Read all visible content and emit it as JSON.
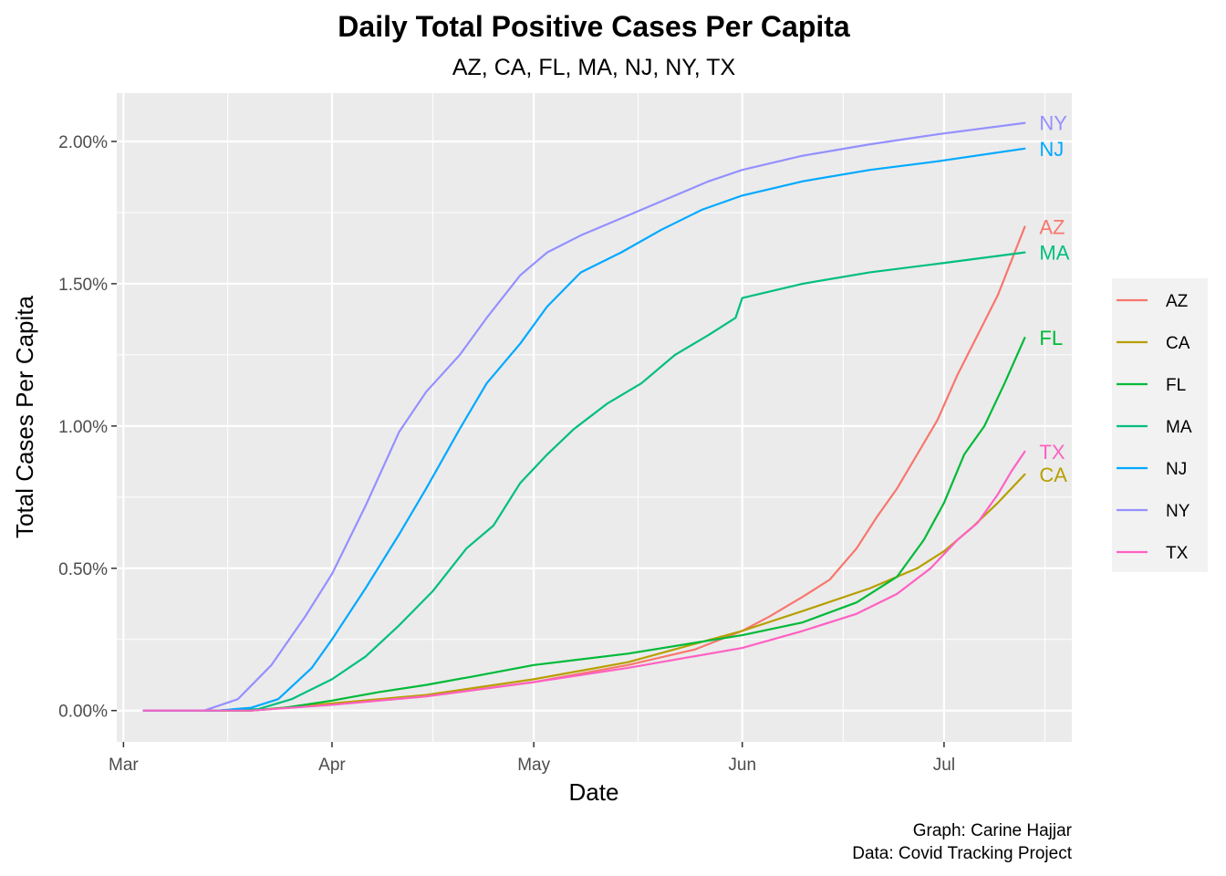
{
  "chart_data": {
    "type": "line",
    "title": "Daily Total Positive Cases Per Capita",
    "subtitle": "AZ, CA, FL, MA, NJ, NY, TX",
    "xlabel": "Date",
    "ylabel": "Total Cases Per Capita",
    "xlim": [
      "2020-02-29",
      "2020-07-20"
    ],
    "ylim": [
      -0.0011,
      0.0217
    ],
    "y_ticks": [
      0,
      0.005,
      0.01,
      0.015,
      0.02
    ],
    "y_tick_labels": [
      "0.00%",
      "0.50%",
      "1.00%",
      "1.50%",
      "2.00%"
    ],
    "x_ticks": [
      "2020-03-01",
      "2020-04-01",
      "2020-05-01",
      "2020-06-01",
      "2020-07-01"
    ],
    "x_tick_labels": [
      "Mar",
      "Apr",
      "May",
      "Jun",
      "Jul"
    ],
    "grid": true,
    "legend": "right",
    "end_labels": true,
    "series": [
      {
        "name": "AZ",
        "color": "#F8766D",
        "points": [
          [
            "2020-03-04",
            0
          ],
          [
            "2020-03-20",
            0
          ],
          [
            "2020-04-01",
            0.00021
          ],
          [
            "2020-04-15",
            0.0005
          ],
          [
            "2020-05-01",
            0.001
          ],
          [
            "2020-05-15",
            0.0016
          ],
          [
            "2020-05-25",
            0.00215
          ],
          [
            "2020-06-01",
            0.0028
          ],
          [
            "2020-06-05",
            0.0033
          ],
          [
            "2020-06-10",
            0.004
          ],
          [
            "2020-06-14",
            0.0046
          ],
          [
            "2020-06-18",
            0.0057
          ],
          [
            "2020-06-21",
            0.0068
          ],
          [
            "2020-06-24",
            0.0078
          ],
          [
            "2020-06-27",
            0.009
          ],
          [
            "2020-06-30",
            0.0102
          ],
          [
            "2020-07-03",
            0.0118
          ],
          [
            "2020-07-06",
            0.0132
          ],
          [
            "2020-07-09",
            0.0146
          ],
          [
            "2020-07-11",
            0.0158
          ],
          [
            "2020-07-13",
            0.017
          ]
        ]
      },
      {
        "name": "CA",
        "color": "#B79F00",
        "points": [
          [
            "2020-03-04",
            0
          ],
          [
            "2020-03-20",
            0
          ],
          [
            "2020-04-01",
            0.00025
          ],
          [
            "2020-04-15",
            0.00055
          ],
          [
            "2020-05-01",
            0.0011
          ],
          [
            "2020-05-15",
            0.0017
          ],
          [
            "2020-06-01",
            0.0028
          ],
          [
            "2020-06-10",
            0.0035
          ],
          [
            "2020-06-20",
            0.0043
          ],
          [
            "2020-06-27",
            0.005
          ],
          [
            "2020-07-01",
            0.0056
          ],
          [
            "2020-07-05",
            0.0064
          ],
          [
            "2020-07-09",
            0.0073
          ],
          [
            "2020-07-13",
            0.0083
          ]
        ]
      },
      {
        "name": "FL",
        "color": "#00BA38",
        "points": [
          [
            "2020-03-04",
            0
          ],
          [
            "2020-03-20",
            0
          ],
          [
            "2020-03-25",
            0.0001
          ],
          [
            "2020-04-01",
            0.00035
          ],
          [
            "2020-04-08",
            0.00065
          ],
          [
            "2020-04-15",
            0.0009
          ],
          [
            "2020-04-22",
            0.0012
          ],
          [
            "2020-05-01",
            0.0016
          ],
          [
            "2020-05-15",
            0.002
          ],
          [
            "2020-06-01",
            0.00265
          ],
          [
            "2020-06-10",
            0.0031
          ],
          [
            "2020-06-18",
            0.0038
          ],
          [
            "2020-06-24",
            0.0047
          ],
          [
            "2020-06-28",
            0.006
          ],
          [
            "2020-07-01",
            0.0073
          ],
          [
            "2020-07-04",
            0.009
          ],
          [
            "2020-07-07",
            0.01
          ],
          [
            "2020-07-10",
            0.0115
          ],
          [
            "2020-07-13",
            0.0131
          ]
        ]
      },
      {
        "name": "MA",
        "color": "#00BF7D",
        "points": [
          [
            "2020-03-04",
            0
          ],
          [
            "2020-03-15",
            0
          ],
          [
            "2020-03-21",
            5e-05
          ],
          [
            "2020-03-26",
            0.0004
          ],
          [
            "2020-04-01",
            0.0011
          ],
          [
            "2020-04-06",
            0.0019
          ],
          [
            "2020-04-11",
            0.003
          ],
          [
            "2020-04-16",
            0.0042
          ],
          [
            "2020-04-21",
            0.0057
          ],
          [
            "2020-04-25",
            0.0065
          ],
          [
            "2020-04-29",
            0.008
          ],
          [
            "2020-05-03",
            0.009
          ],
          [
            "2020-05-07",
            0.0099
          ],
          [
            "2020-05-12",
            0.0108
          ],
          [
            "2020-05-17",
            0.0115
          ],
          [
            "2020-05-22",
            0.0125
          ],
          [
            "2020-05-27",
            0.0132
          ],
          [
            "2020-05-31",
            0.0138
          ],
          [
            "2020-06-01",
            0.0145
          ],
          [
            "2020-06-10",
            0.015
          ],
          [
            "2020-06-20",
            0.0154
          ],
          [
            "2020-06-30",
            0.0157
          ],
          [
            "2020-07-13",
            0.0161
          ]
        ]
      },
      {
        "name": "NJ",
        "color": "#00A9FF",
        "points": [
          [
            "2020-03-04",
            0
          ],
          [
            "2020-03-15",
            0
          ],
          [
            "2020-03-20",
            0.0001
          ],
          [
            "2020-03-24",
            0.0004
          ],
          [
            "2020-03-29",
            0.0015
          ],
          [
            "2020-04-01",
            0.0025
          ],
          [
            "2020-04-06",
            0.0043
          ],
          [
            "2020-04-11",
            0.0062
          ],
          [
            "2020-04-15",
            0.0078
          ],
          [
            "2020-04-20",
            0.0099
          ],
          [
            "2020-04-24",
            0.0115
          ],
          [
            "2020-04-29",
            0.0129
          ],
          [
            "2020-05-03",
            0.0142
          ],
          [
            "2020-05-08",
            0.0154
          ],
          [
            "2020-05-14",
            0.0161
          ],
          [
            "2020-05-20",
            0.0169
          ],
          [
            "2020-05-26",
            0.0176
          ],
          [
            "2020-06-01",
            0.0181
          ],
          [
            "2020-06-10",
            0.0186
          ],
          [
            "2020-06-20",
            0.019
          ],
          [
            "2020-06-30",
            0.0193
          ],
          [
            "2020-07-13",
            0.01975
          ]
        ]
      },
      {
        "name": "NY",
        "color": "#9590FF",
        "points": [
          [
            "2020-03-04",
            0
          ],
          [
            "2020-03-13",
            0
          ],
          [
            "2020-03-18",
            0.0004
          ],
          [
            "2020-03-23",
            0.0016
          ],
          [
            "2020-03-28",
            0.0033
          ],
          [
            "2020-04-01",
            0.0048
          ],
          [
            "2020-04-06",
            0.0072
          ],
          [
            "2020-04-11",
            0.0098
          ],
          [
            "2020-04-15",
            0.0112
          ],
          [
            "2020-04-20",
            0.0125
          ],
          [
            "2020-04-24",
            0.0138
          ],
          [
            "2020-04-29",
            0.0153
          ],
          [
            "2020-05-03",
            0.0161
          ],
          [
            "2020-05-08",
            0.0167
          ],
          [
            "2020-05-14",
            0.0173
          ],
          [
            "2020-05-20",
            0.0179
          ],
          [
            "2020-05-27",
            0.0186
          ],
          [
            "2020-06-01",
            0.019
          ],
          [
            "2020-06-10",
            0.0195
          ],
          [
            "2020-06-20",
            0.0199
          ],
          [
            "2020-06-30",
            0.02025
          ],
          [
            "2020-07-13",
            0.02065
          ]
        ]
      },
      {
        "name": "TX",
        "color": "#FF61C3",
        "points": [
          [
            "2020-03-04",
            0
          ],
          [
            "2020-03-20",
            0
          ],
          [
            "2020-04-01",
            0.0002
          ],
          [
            "2020-04-15",
            0.0005
          ],
          [
            "2020-05-01",
            0.001
          ],
          [
            "2020-05-15",
            0.0015
          ],
          [
            "2020-06-01",
            0.0022
          ],
          [
            "2020-06-10",
            0.0028
          ],
          [
            "2020-06-18",
            0.0034
          ],
          [
            "2020-06-24",
            0.0041
          ],
          [
            "2020-06-29",
            0.005
          ],
          [
            "2020-07-03",
            0.006
          ],
          [
            "2020-07-06",
            0.0066
          ],
          [
            "2020-07-09",
            0.0076
          ],
          [
            "2020-07-11",
            0.0084
          ],
          [
            "2020-07-13",
            0.0091
          ]
        ]
      }
    ],
    "caption": [
      "Graph: Carine Hajjar",
      "Data: Covid Tracking Project"
    ]
  }
}
